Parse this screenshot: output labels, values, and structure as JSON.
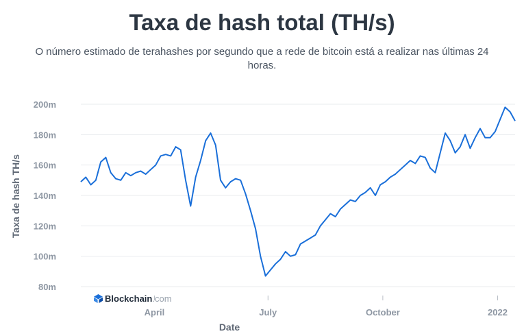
{
  "chart_data": {
    "type": "line",
    "title": "Taxa de hash total (TH/s)",
    "subtitle": "O número estimado de terahashes por segundo que a rede de bitcoin está a realizar nas últimas 24 horas.",
    "xlabel": "Date",
    "ylabel": "Taxa de hash TH/s",
    "x_ticks": [
      "April",
      "July",
      "October",
      "2022"
    ],
    "y_ticks": [
      "200m",
      "180m",
      "160m",
      "140m",
      "120m",
      "100m",
      "80m"
    ],
    "ylim": [
      80,
      200
    ],
    "grid": true,
    "legend": "none",
    "line_color": "#1a6fd9",
    "series": [
      {
        "x": [
          "2021-02-01",
          "2021-02-05",
          "2021-02-09",
          "2021-02-13",
          "2021-02-17",
          "2021-02-21",
          "2021-02-25",
          "2021-03-01",
          "2021-03-05",
          "2021-03-09",
          "2021-03-13",
          "2021-03-17",
          "2021-03-21",
          "2021-03-25",
          "2021-03-29",
          "2021-04-02",
          "2021-04-06",
          "2021-04-10",
          "2021-04-14",
          "2021-04-18",
          "2021-04-22",
          "2021-04-26",
          "2021-04-30",
          "2021-05-04",
          "2021-05-08",
          "2021-05-12",
          "2021-05-16",
          "2021-05-20",
          "2021-05-24",
          "2021-05-28",
          "2021-06-01",
          "2021-06-05",
          "2021-06-09",
          "2021-06-13",
          "2021-06-17",
          "2021-06-21",
          "2021-06-25",
          "2021-06-29",
          "2021-07-03",
          "2021-07-07",
          "2021-07-11",
          "2021-07-15",
          "2021-07-19",
          "2021-07-23",
          "2021-07-27",
          "2021-07-31",
          "2021-08-04",
          "2021-08-08",
          "2021-08-12",
          "2021-08-16",
          "2021-08-20",
          "2021-08-24",
          "2021-08-28",
          "2021-09-01",
          "2021-09-05",
          "2021-09-09",
          "2021-09-13",
          "2021-09-17",
          "2021-09-21",
          "2021-09-25",
          "2021-09-29",
          "2021-10-03",
          "2021-10-07",
          "2021-10-11",
          "2021-10-15",
          "2021-10-19",
          "2021-10-23",
          "2021-10-27",
          "2021-10-31",
          "2021-11-04",
          "2021-11-08",
          "2021-11-12",
          "2021-11-16",
          "2021-11-20",
          "2021-11-24",
          "2021-11-28",
          "2021-12-02",
          "2021-12-06",
          "2021-12-10",
          "2021-12-14",
          "2021-12-18",
          "2021-12-22",
          "2021-12-26",
          "2021-12-30",
          "2022-01-03",
          "2022-01-07",
          "2022-01-11",
          "2022-01-15"
        ],
        "values": [
          149,
          152,
          147,
          150,
          162,
          165,
          155,
          151,
          150,
          155,
          153,
          155,
          156,
          154,
          157,
          160,
          166,
          167,
          166,
          172,
          170,
          150,
          133,
          152,
          163,
          176,
          181,
          173,
          150,
          145,
          149,
          151,
          150,
          141,
          130,
          118,
          100,
          87,
          91,
          95,
          98,
          103,
          100,
          101,
          108,
          110,
          112,
          114,
          120,
          124,
          128,
          126,
          131,
          134,
          137,
          136,
          140,
          142,
          145,
          140,
          147,
          149,
          152,
          154,
          157,
          160,
          163,
          161,
          166,
          165,
          158,
          155,
          168,
          181,
          176,
          168,
          172,
          180,
          171,
          178,
          184,
          178,
          178,
          182,
          190,
          198,
          195,
          189
        ]
      }
    ]
  }
}
